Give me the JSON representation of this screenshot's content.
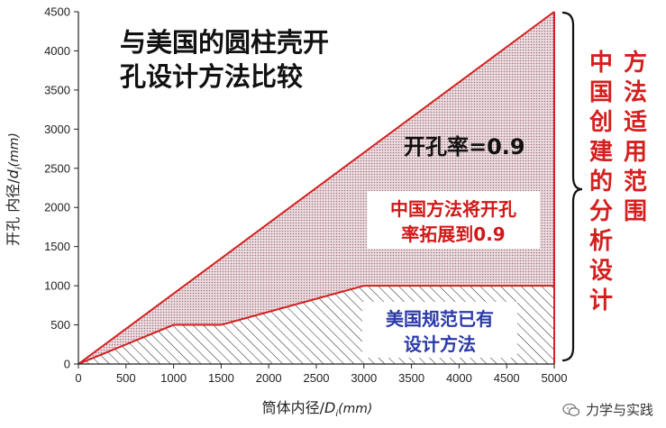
{
  "chart_data": {
    "type": "area",
    "title_lines": [
      "与美国的圆柱壳开",
      "孔设计方法比较"
    ],
    "xlabel_main": "筒体内径/",
    "xlabel_var": "D",
    "xlabel_sub": "i",
    "xlabel_unit": "(mm)",
    "ylabel_main": "开孔 内径/",
    "ylabel_var": "d",
    "ylabel_sub": "i",
    "ylabel_unit": "(mm)",
    "xlim": [
      0,
      5000
    ],
    "ylim": [
      0,
      4500
    ],
    "xticks": [
      0,
      500,
      1000,
      1500,
      2000,
      2500,
      3000,
      3500,
      4000,
      4500,
      5000
    ],
    "yticks": [
      0,
      500,
      1000,
      1500,
      2000,
      2500,
      3000,
      3500,
      4000,
      4500
    ],
    "series": [
      {
        "name": "中国方法 (开孔率=0.9)",
        "x": [
          0,
          5000
        ],
        "y": [
          0,
          4500
        ],
        "color": "#d42020"
      },
      {
        "name": "美国规范",
        "x": [
          0,
          1000,
          1500,
          3000,
          5000
        ],
        "y": [
          0,
          500,
          500,
          1000,
          1000
        ],
        "color": "#d42020"
      }
    ],
    "annotations": {
      "ratio": "开孔率=0.9",
      "china_box": [
        "中国方法将开孔",
        "率拓展到0.9"
      ],
      "us_box": [
        "美国规范已有",
        "设计方法"
      ],
      "vertical_col1": [
        "中",
        "国",
        "创",
        "建",
        "的",
        "分",
        "析",
        "设",
        "计"
      ],
      "vertical_col2": [
        "方",
        "法",
        "适",
        "用",
        "范",
        "围"
      ]
    }
  },
  "watermark": {
    "text": "力学与实践"
  }
}
